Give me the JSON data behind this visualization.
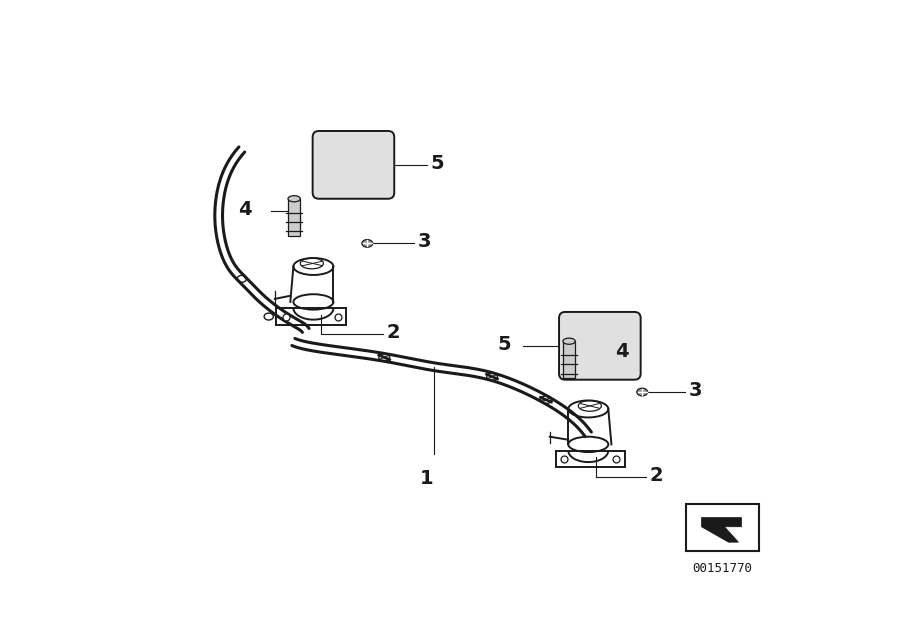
{
  "bg_color": "#ffffff",
  "line_color": "#1a1a1a",
  "fig_width": 9.0,
  "fig_height": 6.36,
  "part_number": "00151770",
  "hose_color": "#333333",
  "component_color": "#555555"
}
